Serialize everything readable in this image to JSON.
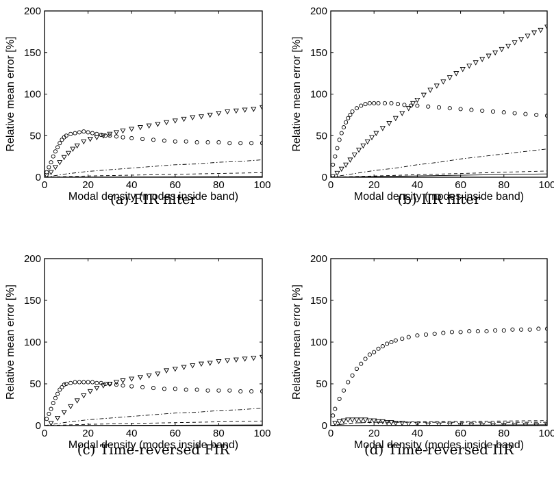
{
  "chart_data": [
    {
      "type": "scatter",
      "caption": "(a)  FIR filter",
      "xlabel": "Modal density (modes inside band)",
      "ylabel": "Relative mean error [%]",
      "xlim": [
        0,
        100
      ],
      "ylim": [
        0,
        200
      ],
      "xticks": [
        0,
        20,
        40,
        60,
        80,
        100
      ],
      "yticks": [
        0,
        50,
        100,
        150,
        200
      ],
      "series": [
        {
          "style": "circle",
          "x": [
            1,
            2,
            3,
            4,
            5,
            6,
            7,
            8,
            9,
            10,
            12,
            14,
            16,
            18,
            20,
            22,
            24,
            26,
            28,
            30,
            33,
            36,
            40,
            45,
            50,
            55,
            60,
            65,
            70,
            75,
            80,
            85,
            90,
            95,
            100
          ],
          "y": [
            6,
            12,
            18,
            25,
            31,
            36,
            41,
            45,
            48,
            50,
            52,
            53,
            54,
            55,
            54,
            53,
            52,
            51,
            50,
            50,
            49,
            48,
            47,
            46,
            45,
            44,
            43,
            43,
            42,
            42,
            42,
            41,
            41,
            41,
            41
          ]
        },
        {
          "style": "triangle-down",
          "x": [
            1,
            3,
            5,
            7,
            9,
            11,
            13,
            15,
            18,
            21,
            24,
            27,
            30,
            33,
            36,
            40,
            44,
            48,
            52,
            56,
            60,
            64,
            68,
            72,
            76,
            80,
            84,
            88,
            92,
            96,
            100
          ],
          "y": [
            2,
            6,
            12,
            18,
            24,
            29,
            34,
            38,
            43,
            46,
            48,
            50,
            52,
            54,
            56,
            58,
            60,
            62,
            64,
            66,
            68,
            70,
            72,
            73,
            75,
            77,
            79,
            80,
            81,
            82,
            84
          ]
        },
        {
          "style": "dashdot",
          "x": [
            0,
            10,
            20,
            30,
            40,
            50,
            60,
            70,
            80,
            90,
            100
          ],
          "y": [
            0,
            4,
            7,
            9,
            11,
            13,
            15,
            16,
            18,
            19,
            21
          ]
        },
        {
          "style": "dashed",
          "x": [
            0,
            20,
            40,
            60,
            80,
            100
          ],
          "y": [
            0,
            1.5,
            2.5,
            3.5,
            4.5,
            5.5
          ]
        },
        {
          "style": "solid",
          "x": [
            0,
            50,
            100
          ],
          "y": [
            0,
            0.4,
            0.8
          ]
        }
      ]
    },
    {
      "type": "scatter",
      "caption": "(b)  IIR filter",
      "xlabel": "Modal density (modes inside band)",
      "ylabel": "Relative mean error [%]",
      "xlim": [
        0,
        100
      ],
      "ylim": [
        0,
        200
      ],
      "xticks": [
        0,
        20,
        40,
        60,
        80,
        100
      ],
      "yticks": [
        0,
        50,
        100,
        150,
        200
      ],
      "series": [
        {
          "style": "circle",
          "x": [
            1,
            2,
            3,
            4,
            5,
            6,
            7,
            8,
            9,
            10,
            12,
            14,
            16,
            18,
            20,
            22,
            25,
            28,
            31,
            34,
            37,
            40,
            45,
            50,
            55,
            60,
            65,
            70,
            75,
            80,
            85,
            90,
            95,
            100
          ],
          "y": [
            15,
            25,
            35,
            45,
            53,
            60,
            66,
            71,
            75,
            79,
            83,
            86,
            88,
            89,
            89,
            89,
            89,
            89,
            88,
            87,
            86,
            86,
            85,
            84,
            83,
            82,
            81,
            80,
            79,
            78,
            77,
            76,
            75,
            74
          ]
        },
        {
          "style": "triangle-down",
          "x": [
            1,
            3,
            5,
            7,
            9,
            11,
            13,
            15,
            17,
            19,
            21,
            24,
            27,
            30,
            33,
            36,
            38,
            40,
            43,
            46,
            49,
            52,
            55,
            58,
            61,
            64,
            67,
            70,
            73,
            76,
            79,
            82,
            85,
            88,
            91,
            94,
            97,
            100
          ],
          "y": [
            1,
            5,
            10,
            15,
            21,
            27,
            33,
            38,
            43,
            48,
            53,
            59,
            65,
            71,
            77,
            83,
            89,
            93,
            99,
            105,
            110,
            115,
            120,
            125,
            130,
            134,
            138,
            142,
            146,
            150,
            154,
            158,
            162,
            166,
            170,
            174,
            177,
            181
          ]
        },
        {
          "style": "dashdot",
          "x": [
            0,
            10,
            20,
            30,
            40,
            50,
            60,
            70,
            80,
            90,
            100
          ],
          "y": [
            0,
            4,
            8,
            11,
            15,
            18,
            22,
            25,
            28,
            31,
            34
          ]
        },
        {
          "style": "dashed",
          "x": [
            0,
            20,
            40,
            60,
            80,
            100
          ],
          "y": [
            0,
            1.5,
            3,
            4.5,
            6,
            7.5
          ]
        },
        {
          "style": "solid",
          "x": [
            0,
            50,
            100
          ],
          "y": [
            0,
            2,
            4
          ]
        }
      ]
    },
    {
      "type": "scatter",
      "caption": "(c)  Time-reversed FIR",
      "xlabel": "Modal density (modes inside band)",
      "ylabel": "Relative mean error [%]",
      "xlim": [
        0,
        100
      ],
      "ylim": [
        0,
        200
      ],
      "xticks": [
        0,
        20,
        40,
        60,
        80,
        100
      ],
      "yticks": [
        0,
        50,
        100,
        150,
        200
      ],
      "series": [
        {
          "style": "circle",
          "x": [
            1,
            2,
            3,
            4,
            5,
            6,
            7,
            8,
            9,
            10,
            12,
            14,
            16,
            18,
            20,
            22,
            24,
            26,
            28,
            30,
            33,
            36,
            40,
            45,
            50,
            55,
            60,
            65,
            70,
            75,
            80,
            85,
            90,
            95,
            100
          ],
          "y": [
            8,
            14,
            20,
            27,
            33,
            38,
            43,
            46,
            49,
            50,
            51,
            52,
            52,
            52,
            52,
            52,
            51,
            51,
            50,
            50,
            49,
            48,
            47,
            46,
            45,
            44,
            44,
            43,
            43,
            42,
            42,
            42,
            41,
            41,
            41
          ]
        },
        {
          "style": "triangle-down",
          "x": [
            3,
            6,
            9,
            12,
            15,
            18,
            21,
            24,
            27,
            30,
            33,
            36,
            40,
            44,
            48,
            52,
            56,
            60,
            64,
            68,
            72,
            76,
            80,
            84,
            88,
            92,
            96,
            100
          ],
          "y": [
            3,
            9,
            16,
            23,
            30,
            36,
            41,
            45,
            48,
            50,
            52,
            54,
            56,
            58,
            60,
            62,
            66,
            68,
            70,
            72,
            74,
            75,
            77,
            78,
            79,
            80,
            81,
            82
          ]
        },
        {
          "style": "dashdot",
          "x": [
            0,
            10,
            20,
            30,
            40,
            50,
            60,
            70,
            80,
            90,
            100
          ],
          "y": [
            0,
            4,
            7,
            9,
            11,
            13,
            15,
            16,
            18,
            19,
            21
          ]
        },
        {
          "style": "dashed",
          "x": [
            0,
            20,
            40,
            60,
            80,
            100
          ],
          "y": [
            0,
            1.5,
            2.5,
            3.5,
            4.5,
            5.5
          ]
        },
        {
          "style": "solid",
          "x": [
            0,
            50,
            100
          ],
          "y": [
            0,
            0.4,
            0.8
          ]
        }
      ]
    },
    {
      "type": "scatter",
      "caption": "(d)  Time-reversed IIR",
      "xlabel": "Modal density (modes inside band)",
      "ylabel": "Relative mean error [%]",
      "xlim": [
        0,
        100
      ],
      "ylim": [
        0,
        200
      ],
      "xticks": [
        0,
        20,
        40,
        60,
        80,
        100
      ],
      "yticks": [
        0,
        50,
        100,
        150,
        200
      ],
      "series": [
        {
          "style": "circle",
          "x": [
            1,
            2,
            4,
            6,
            8,
            10,
            12,
            14,
            16,
            18,
            20,
            22,
            24,
            26,
            28,
            30,
            33,
            36,
            40,
            44,
            48,
            52,
            56,
            60,
            64,
            68,
            72,
            76,
            80,
            84,
            88,
            92,
            96,
            100
          ],
          "y": [
            12,
            20,
            32,
            42,
            52,
            60,
            68,
            74,
            80,
            85,
            88,
            92,
            95,
            98,
            100,
            102,
            104,
            106,
            108,
            109,
            110,
            111,
            112,
            112,
            113,
            113,
            113,
            114,
            114,
            115,
            115,
            115,
            116,
            116
          ]
        },
        {
          "style": "triangle-down",
          "x": [
            2,
            4,
            6,
            8,
            10,
            12,
            14,
            16,
            18,
            20,
            22,
            24,
            26,
            28,
            30,
            33,
            36,
            40,
            45,
            50,
            55,
            60,
            65,
            70,
            75,
            80,
            85,
            90,
            95,
            100
          ],
          "y": [
            3,
            5,
            6,
            7,
            7,
            7,
            7,
            7,
            6,
            6,
            5,
            5,
            4,
            4,
            3,
            3,
            2,
            2,
            1,
            1,
            1,
            0.5,
            0.5,
            0.5,
            0.5,
            0.5,
            0.5,
            0.5,
            0.5,
            0.5
          ]
        },
        {
          "style": "dashdot",
          "x": [
            0,
            10,
            20,
            40,
            60,
            80,
            100
          ],
          "y": [
            0,
            3,
            4,
            4,
            4,
            4,
            4
          ]
        },
        {
          "style": "dashed",
          "x": [
            0,
            10,
            20,
            40,
            60,
            80,
            100
          ],
          "y": [
            0,
            3,
            4,
            4.5,
            5,
            5.5,
            6
          ]
        },
        {
          "style": "solid",
          "x": [
            0,
            50,
            100
          ],
          "y": [
            0,
            0.5,
            1
          ]
        }
      ]
    }
  ]
}
